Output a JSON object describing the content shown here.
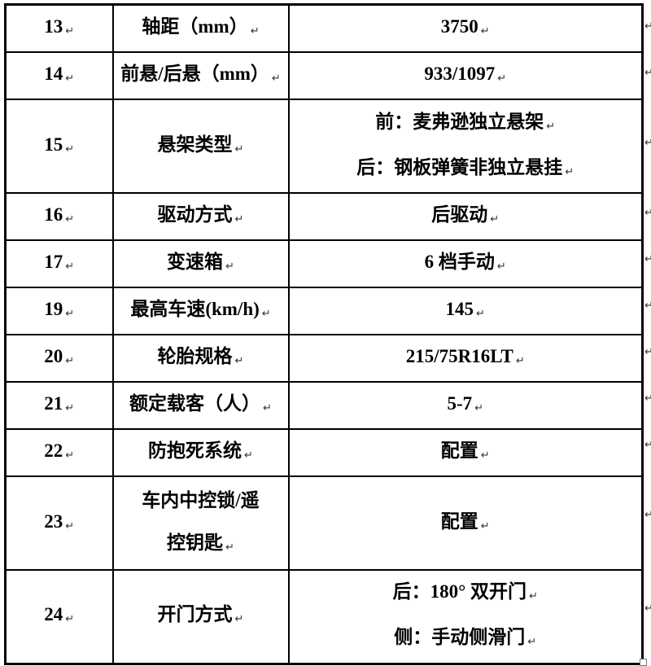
{
  "document": {
    "background_color": "#ffffff",
    "border_color": "#000000",
    "text_color": "#000000",
    "paragraph_mark": "↵",
    "end_of_document_mark": "□"
  },
  "table": {
    "columns": [
      "row-number",
      "spec-name",
      "spec-value"
    ],
    "rows": [
      {
        "num": "13",
        "label": [
          "轴距（mm）"
        ],
        "value": [
          "3750"
        ]
      },
      {
        "num": "14",
        "label": [
          "前悬/后悬（mm）"
        ],
        "value": [
          "933/1097"
        ]
      },
      {
        "num": "15",
        "label": [
          "悬架类型"
        ],
        "value": [
          "前：麦弗逊独立悬架",
          "后：钢板弹簧非独立悬挂"
        ]
      },
      {
        "num": "16",
        "label": [
          "驱动方式"
        ],
        "value": [
          "后驱动"
        ]
      },
      {
        "num": "17",
        "label": [
          "变速箱"
        ],
        "value": [
          "6 档手动"
        ]
      },
      {
        "num": "19",
        "label": [
          "最高车速(km/h)"
        ],
        "value": [
          "145"
        ]
      },
      {
        "num": "20",
        "label": [
          "轮胎规格"
        ],
        "value": [
          "215/75R16LT"
        ]
      },
      {
        "num": "21",
        "label": [
          "额定载客（人）"
        ],
        "value": [
          "5-7"
        ]
      },
      {
        "num": "22",
        "label": [
          "防抱死系统"
        ],
        "value": [
          "配置"
        ]
      },
      {
        "num": "23",
        "label": [
          "车内中控锁/遥",
          "控钥匙"
        ],
        "value": [
          "配置"
        ]
      },
      {
        "num": "24",
        "label": [
          "开门方式"
        ],
        "value": [
          "后：180° 双开门",
          "侧：手动侧滑门"
        ]
      }
    ]
  }
}
